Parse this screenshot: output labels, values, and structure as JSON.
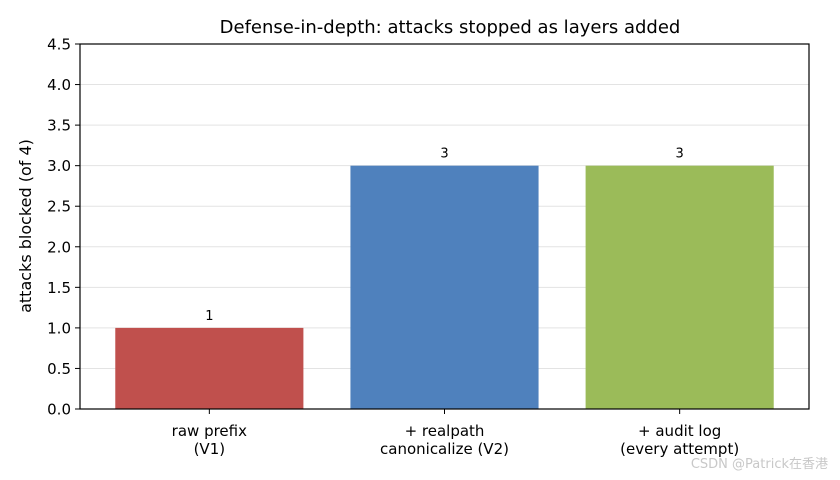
{
  "chart_data": {
    "type": "bar",
    "title": "Defense-in-depth: attacks stopped as layers added",
    "xlabel": "",
    "ylabel": "attacks blocked (of 4)",
    "ylim": [
      0,
      4.5
    ],
    "yticks": [
      "0.0",
      "0.5",
      "1.0",
      "1.5",
      "2.0",
      "2.5",
      "3.0",
      "3.5",
      "4.0",
      "4.5"
    ],
    "grid": "horizontal",
    "categories": [
      [
        "raw prefix",
        "(V1)"
      ],
      [
        "+ realpath",
        "canonicalize (V2)"
      ],
      [
        "+ audit log",
        "(every attempt)"
      ]
    ],
    "values": [
      1,
      3,
      3
    ],
    "data_labels": [
      "1",
      "3",
      "3"
    ],
    "colors": [
      "#c0504d",
      "#4f81bd",
      "#9bbb59"
    ]
  },
  "watermark": "CSDN @Patrick在香港"
}
